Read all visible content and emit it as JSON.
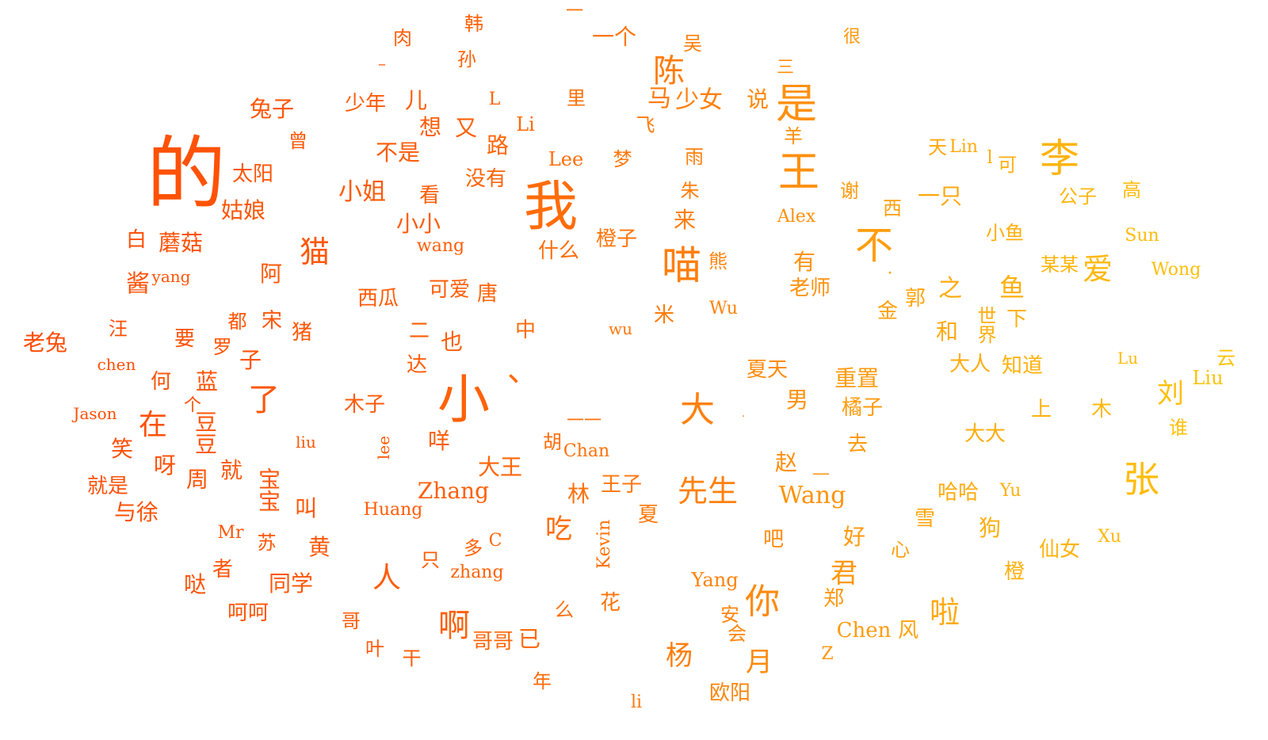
{
  "words": [
    {
      "t": "的"
    },
    {
      "t": "我"
    },
    {
      "t": "小"
    },
    {
      "t": "是"
    },
    {
      "t": "王"
    },
    {
      "t": "李"
    },
    {
      "t": "喵"
    },
    {
      "t": "不"
    },
    {
      "t": "大"
    },
    {
      "t": "、"
    },
    {
      "t": "张"
    },
    {
      "t": "刘"
    },
    {
      "t": "你"
    },
    {
      "t": "猫"
    },
    {
      "t": "啊"
    },
    {
      "t": "陈"
    },
    {
      "t": "先生"
    },
    {
      "t": "了"
    },
    {
      "t": "啦"
    },
    {
      "t": "杨"
    },
    {
      "t": "君"
    },
    {
      "t": "人"
    },
    {
      "t": "爱"
    },
    {
      "t": "鱼"
    },
    {
      "t": "在"
    },
    {
      "t": "吃"
    },
    {
      "t": "月"
    },
    {
      "t": "一个"
    },
    {
      "t": "马"
    },
    {
      "t": "少女"
    },
    {
      "t": "兔子"
    },
    {
      "t": "少年"
    },
    {
      "t": "儿"
    },
    {
      "t": "说"
    },
    {
      "t": "想"
    },
    {
      "t": "又"
    },
    {
      "t": "路"
    },
    {
      "t": "不是"
    },
    {
      "t": "没有"
    },
    {
      "t": "太阳"
    },
    {
      "t": "姑娘"
    },
    {
      "t": "小姐"
    },
    {
      "t": "看"
    },
    {
      "t": "小小"
    },
    {
      "t": "什么"
    },
    {
      "t": "橙子"
    },
    {
      "t": "来"
    },
    {
      "t": "蘑菇"
    },
    {
      "t": "白"
    },
    {
      "t": "酱"
    },
    {
      "t": "阿"
    },
    {
      "t": "西瓜"
    },
    {
      "t": "可爱"
    },
    {
      "t": "唐"
    },
    {
      "t": "老兔"
    },
    {
      "t": "汪"
    },
    {
      "t": "要"
    },
    {
      "t": "宋"
    },
    {
      "t": "猪"
    },
    {
      "t": "子"
    },
    {
      "t": "二"
    },
    {
      "t": "也"
    },
    {
      "t": "中"
    },
    {
      "t": "达"
    },
    {
      "t": "何"
    },
    {
      "t": "蓝"
    },
    {
      "t": "木子"
    },
    {
      "t": "咩"
    },
    {
      "t": "笑"
    },
    {
      "t": "呀"
    },
    {
      "t": "就"
    },
    {
      "t": "就是"
    },
    {
      "t": "与徐"
    },
    {
      "t": "叫"
    },
    {
      "t": "大王"
    },
    {
      "t": "林"
    },
    {
      "t": "王子"
    },
    {
      "t": "夏"
    },
    {
      "t": "黄"
    },
    {
      "t": "者"
    },
    {
      "t": "哒"
    },
    {
      "t": "同学"
    },
    {
      "t": "呵呵"
    },
    {
      "t": "只"
    },
    {
      "t": "哥"
    },
    {
      "t": "叶"
    },
    {
      "t": "哥哥"
    },
    {
      "t": "已"
    },
    {
      "t": "么"
    },
    {
      "t": "花"
    },
    {
      "t": "年"
    },
    {
      "t": "欧阳"
    },
    {
      "t": "安"
    },
    {
      "t": "会"
    },
    {
      "t": "郑"
    },
    {
      "t": "风"
    },
    {
      "t": "好"
    },
    {
      "t": "心"
    },
    {
      "t": "吧"
    },
    {
      "t": "赵"
    },
    {
      "t": "去"
    },
    {
      "t": "男"
    },
    {
      "t": "橘子"
    },
    {
      "t": "重置"
    },
    {
      "t": "夏天"
    },
    {
      "t": "金"
    },
    {
      "t": "郭"
    },
    {
      "t": "之"
    },
    {
      "t": "和"
    },
    {
      "t": "下"
    },
    {
      "t": "大人"
    },
    {
      "t": "知道"
    },
    {
      "t": "上"
    },
    {
      "t": "木"
    },
    {
      "t": "谁"
    },
    {
      "t": "大大"
    },
    {
      "t": "云"
    },
    {
      "t": "狗"
    },
    {
      "t": "仙女"
    },
    {
      "t": "橙"
    },
    {
      "t": "雪"
    },
    {
      "t": "哈哈"
    },
    {
      "t": "公子"
    },
    {
      "t": "高"
    },
    {
      "t": "一只"
    },
    {
      "t": "西"
    },
    {
      "t": "谢"
    },
    {
      "t": "有"
    },
    {
      "t": "老师"
    },
    {
      "t": "熊"
    },
    {
      "t": "米"
    },
    {
      "t": "小鱼"
    },
    {
      "t": "某某"
    },
    {
      "t": "可"
    },
    {
      "t": "天"
    },
    {
      "t": "羊"
    },
    {
      "t": "三"
    },
    {
      "t": "很"
    },
    {
      "t": "吴"
    },
    {
      "t": "里"
    },
    {
      "t": "肉"
    },
    {
      "t": "韩"
    },
    {
      "t": "孙"
    },
    {
      "t": "曾"
    },
    {
      "t": "雨"
    },
    {
      "t": "多"
    },
    {
      "t": "一"
    },
    {
      "t": "一一"
    },
    {
      "t": "罗"
    },
    {
      "t": "胡"
    },
    {
      "t": "飞"
    },
    {
      "t": "梦"
    },
    {
      "t": "朱"
    },
    {
      "t": "世界"
    },
    {
      "t": "都"
    },
    {
      "t": "个"
    },
    {
      "t": "周"
    },
    {
      "t": "豆豆"
    },
    {
      "t": "宝宝"
    },
    {
      "t": "苏"
    },
    {
      "t": "干"
    },
    {
      "t": "·"
    },
    {
      "t": "l"
    },
    {
      "t": "—"
    },
    {
      "t": "–"
    },
    {
      "t": "."
    },
    {
      "t": "Zhang"
    },
    {
      "t": "Wang"
    },
    {
      "t": "Chen"
    },
    {
      "t": "Huang"
    },
    {
      "t": "Jason"
    },
    {
      "t": "chen"
    },
    {
      "t": "liu"
    },
    {
      "t": "lee"
    },
    {
      "t": "Mr"
    },
    {
      "t": "zhang"
    },
    {
      "t": "Kevin"
    },
    {
      "t": "Yang"
    },
    {
      "t": "Chan"
    },
    {
      "t": "Lee"
    },
    {
      "t": "Li"
    },
    {
      "t": "L"
    },
    {
      "t": "wang"
    },
    {
      "t": "yang"
    },
    {
      "t": "wu"
    },
    {
      "t": "Wu"
    },
    {
      "t": "Alex"
    },
    {
      "t": "Lin"
    },
    {
      "t": "Sun"
    },
    {
      "t": "Wong"
    },
    {
      "t": "Lu"
    },
    {
      "t": "Liu"
    },
    {
      "t": "Yu"
    },
    {
      "t": "Xu"
    },
    {
      "t": "C"
    },
    {
      "t": "Z"
    },
    {
      "t": "li"
    }
  ]
}
